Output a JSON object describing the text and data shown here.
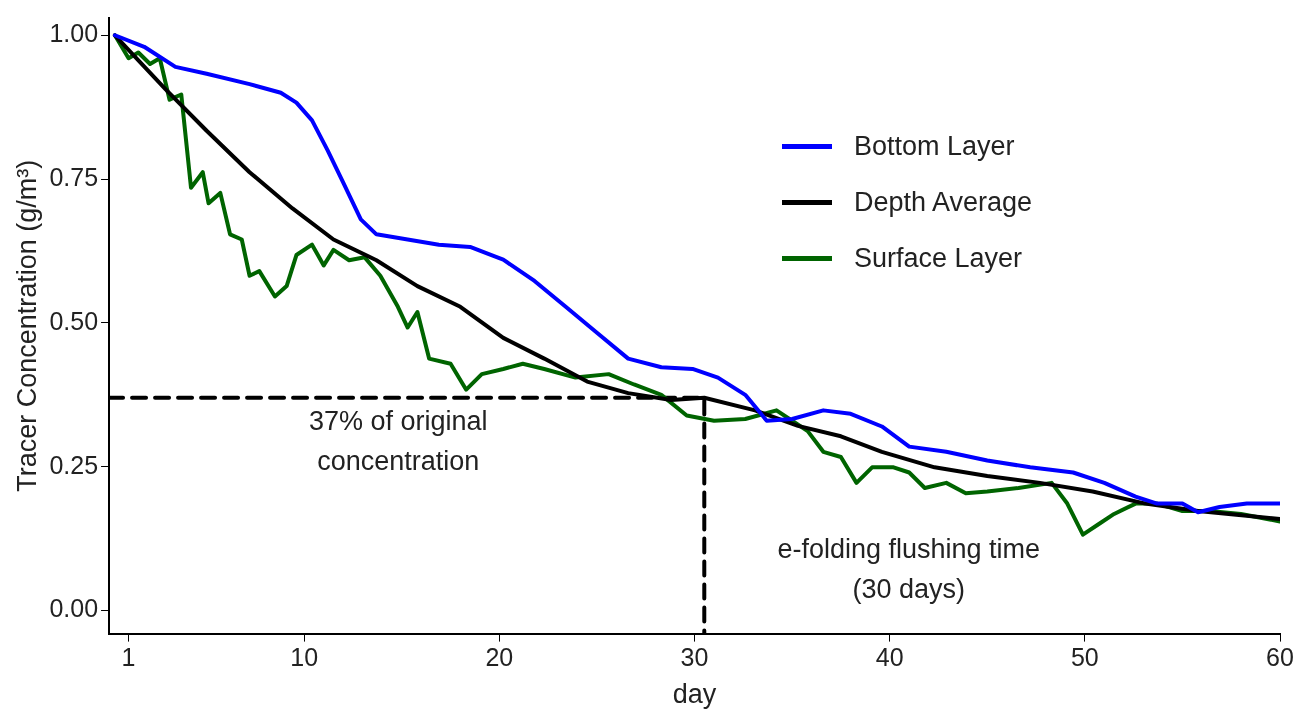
{
  "chart_data": {
    "type": "line",
    "xlabel": "day",
    "ylabel": "Tracer Concentration (g/m³)",
    "xlim": [
      0,
      60
    ],
    "xticks": [
      1,
      10,
      20,
      30,
      40,
      50,
      60
    ],
    "ylim": [
      -0.04,
      1.03
    ],
    "yticks": [
      {
        "value": 0,
        "label": "0.00"
      },
      {
        "value": 0.25,
        "label": "0.25"
      },
      {
        "value": 0.5,
        "label": "0.50"
      },
      {
        "value": 0.75,
        "label": "0.75"
      },
      {
        "value": 1,
        "label": "1.00"
      }
    ],
    "grid": false,
    "legend": "top right",
    "marker": "none",
    "line_style": "solid",
    "series": [
      {
        "name": "Bottom Layer",
        "color": "#0000ff",
        "x": [
          0.3,
          1.8,
          3.4,
          5,
          7.2,
          8.8,
          9.6,
          10.4,
          11.2,
          12,
          12.9,
          13.7,
          15.3,
          16.9,
          18.5,
          20.2,
          21.8,
          23.4,
          25,
          26.6,
          28.3,
          29.9,
          31.2,
          32.6,
          33.7,
          35,
          36.6,
          38,
          39.6,
          41,
          42.9,
          45,
          47.2,
          49.4,
          51,
          52.6,
          53.7,
          55,
          55.8,
          56.9,
          58.3,
          60
        ],
        "values": [
          1.0,
          0.98,
          0.945,
          0.933,
          0.915,
          0.9,
          0.883,
          0.852,
          0.8,
          0.744,
          0.68,
          0.654,
          0.645,
          0.636,
          0.632,
          0.61,
          0.573,
          0.528,
          0.483,
          0.438,
          0.423,
          0.42,
          0.405,
          0.375,
          0.33,
          0.333,
          0.348,
          0.342,
          0.32,
          0.285,
          0.276,
          0.261,
          0.249,
          0.24,
          0.222,
          0.198,
          0.186,
          0.186,
          0.171,
          0.18,
          0.186,
          0.186
        ]
      },
      {
        "name": "Depth Average",
        "color": "#000000",
        "x": [
          0.3,
          2.9,
          5,
          7.2,
          9.4,
          11.5,
          13.7,
          15.8,
          18,
          20.2,
          22.3,
          24.5,
          26.6,
          28.8,
          30.5,
          33.1,
          35.3,
          37.5,
          39.6,
          42.3,
          45,
          47.7,
          50.4,
          53.1,
          55.8,
          60
        ],
        "values": [
          1.0,
          0.906,
          0.834,
          0.762,
          0.699,
          0.645,
          0.609,
          0.564,
          0.528,
          0.474,
          0.438,
          0.398,
          0.378,
          0.366,
          0.37,
          0.348,
          0.321,
          0.303,
          0.276,
          0.249,
          0.234,
          0.222,
          0.207,
          0.186,
          0.173,
          0.159
        ]
      },
      {
        "name": "Surface Layer",
        "color": "#006400",
        "x": [
          0.3,
          1,
          1.5,
          2.1,
          2.6,
          3.1,
          3.7,
          4.2,
          4.8,
          5.1,
          5.7,
          6.2,
          6.8,
          7.2,
          7.7,
          8.5,
          9.1,
          9.6,
          10.4,
          11,
          11.5,
          12.3,
          13.1,
          13.9,
          14.8,
          15.3,
          15.8,
          16.4,
          17.5,
          18.3,
          19.1,
          20.2,
          21.2,
          22.3,
          23.9,
          25.6,
          26.9,
          28.3,
          29.6,
          31,
          32.6,
          34.2,
          35,
          35.8,
          36.6,
          37.5,
          38.3,
          39.1,
          40.2,
          41,
          41.8,
          42.9,
          43.9,
          45,
          46.6,
          48.3,
          49.1,
          49.9,
          50.7,
          51.5,
          52.6,
          53.7,
          55,
          56.4,
          58,
          60
        ],
        "values": [
          1.0,
          0.96,
          0.97,
          0.95,
          0.96,
          0.888,
          0.897,
          0.735,
          0.762,
          0.708,
          0.726,
          0.654,
          0.645,
          0.582,
          0.59,
          0.546,
          0.564,
          0.618,
          0.636,
          0.6,
          0.627,
          0.609,
          0.614,
          0.582,
          0.528,
          0.492,
          0.519,
          0.438,
          0.429,
          0.384,
          0.411,
          0.42,
          0.429,
          0.42,
          0.405,
          0.411,
          0.393,
          0.375,
          0.339,
          0.33,
          0.333,
          0.348,
          0.33,
          0.312,
          0.276,
          0.267,
          0.222,
          0.249,
          0.249,
          0.24,
          0.213,
          0.222,
          0.204,
          0.207,
          0.213,
          0.222,
          0.186,
          0.132,
          0.15,
          0.168,
          0.186,
          0.186,
          0.173,
          0.173,
          0.168,
          0.155
        ]
      },
      {
        "color": "#000000",
        "line_style": "dashed",
        "x": [
          0,
          30.5,
          30.5
        ],
        "values": [
          0.37,
          0.37,
          -0.04
        ]
      }
    ],
    "annotations": [
      "37% of original\nconcentration",
      "e-folding flushing time\n(30 days)"
    ]
  }
}
